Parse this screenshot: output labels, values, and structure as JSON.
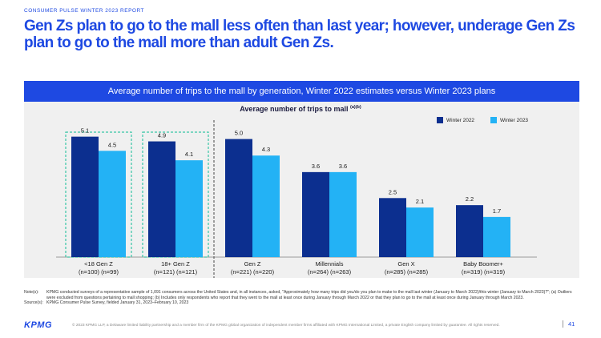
{
  "report_label": "CONSUMER PULSE WINTER 2023 REPORT",
  "headline": "Gen Zs plan to go to the mall less often than last year; however, underage Gen Zs plan to go to the mall more than adult Gen Zs.",
  "panel_header": "Average number of trips to the mall by generation, Winter 2022 estimates versus Winter 2023 plans",
  "chart_data": {
    "type": "bar",
    "title": "Average number of trips to mall",
    "title_superscript": "(a)(b)",
    "categories": [
      "<18 Gen Z",
      "18+ Gen Z",
      "Gen Z",
      "Millennials",
      "Gen X",
      "Baby Boomer+"
    ],
    "category_sublabels": [
      "(n=100) (n=99)",
      "(n=121) (n=121)",
      "(n=221) (n=220)",
      "(n=264) (n=263)",
      "(n=285) (n=285)",
      "(n=319) (n=319)"
    ],
    "series": [
      {
        "name": "Winter 2022",
        "color": "#0c2f8f",
        "values": [
          5.1,
          4.9,
          5.0,
          3.6,
          2.5,
          2.2
        ]
      },
      {
        "name": "Winter 2023",
        "color": "#23b2f5",
        "values": [
          4.5,
          4.1,
          4.3,
          3.6,
          2.1,
          1.7
        ]
      }
    ],
    "ylim": [
      0,
      5.8
    ],
    "legend_position": "top-right",
    "highlighted_categories": [
      "<18 Gen Z",
      "18+ Gen Z"
    ],
    "highlight_color": "#39c6a6",
    "divider_after_category": "18+ Gen Z",
    "grid": false
  },
  "notes": {
    "note_label": "Note(s):",
    "note_text": "KPMG conducted surveys of a representative sample of 1,091 consumers across the United States and, in all instances, asked, \"Approximately how many trips did you/do you plan to make to the mall last winter (January to March 2022)/this winter (January to March 2023)?\"; (a) Outliers were excluded from questions pertaining to mall shopping; (b) Includes only respondents who report that they went to the mall at least once during January through March 2022 or that they plan to go to the mall at least once during January through March 2023.",
    "source_label": "Source(s):",
    "source_text": "KPMG Consumer Pulse Survey, fielded January 31, 2023–February 10, 2023"
  },
  "footer": {
    "logo": "KPMG",
    "copyright": "© 2023 KPMG LLP, a Delaware limited liability partnership and a member firm of the KPMG global organization of independent member firms affiliated with KPMG International Limited, a private English company limited by guarantee. All rights reserved.",
    "page_number": "41"
  }
}
